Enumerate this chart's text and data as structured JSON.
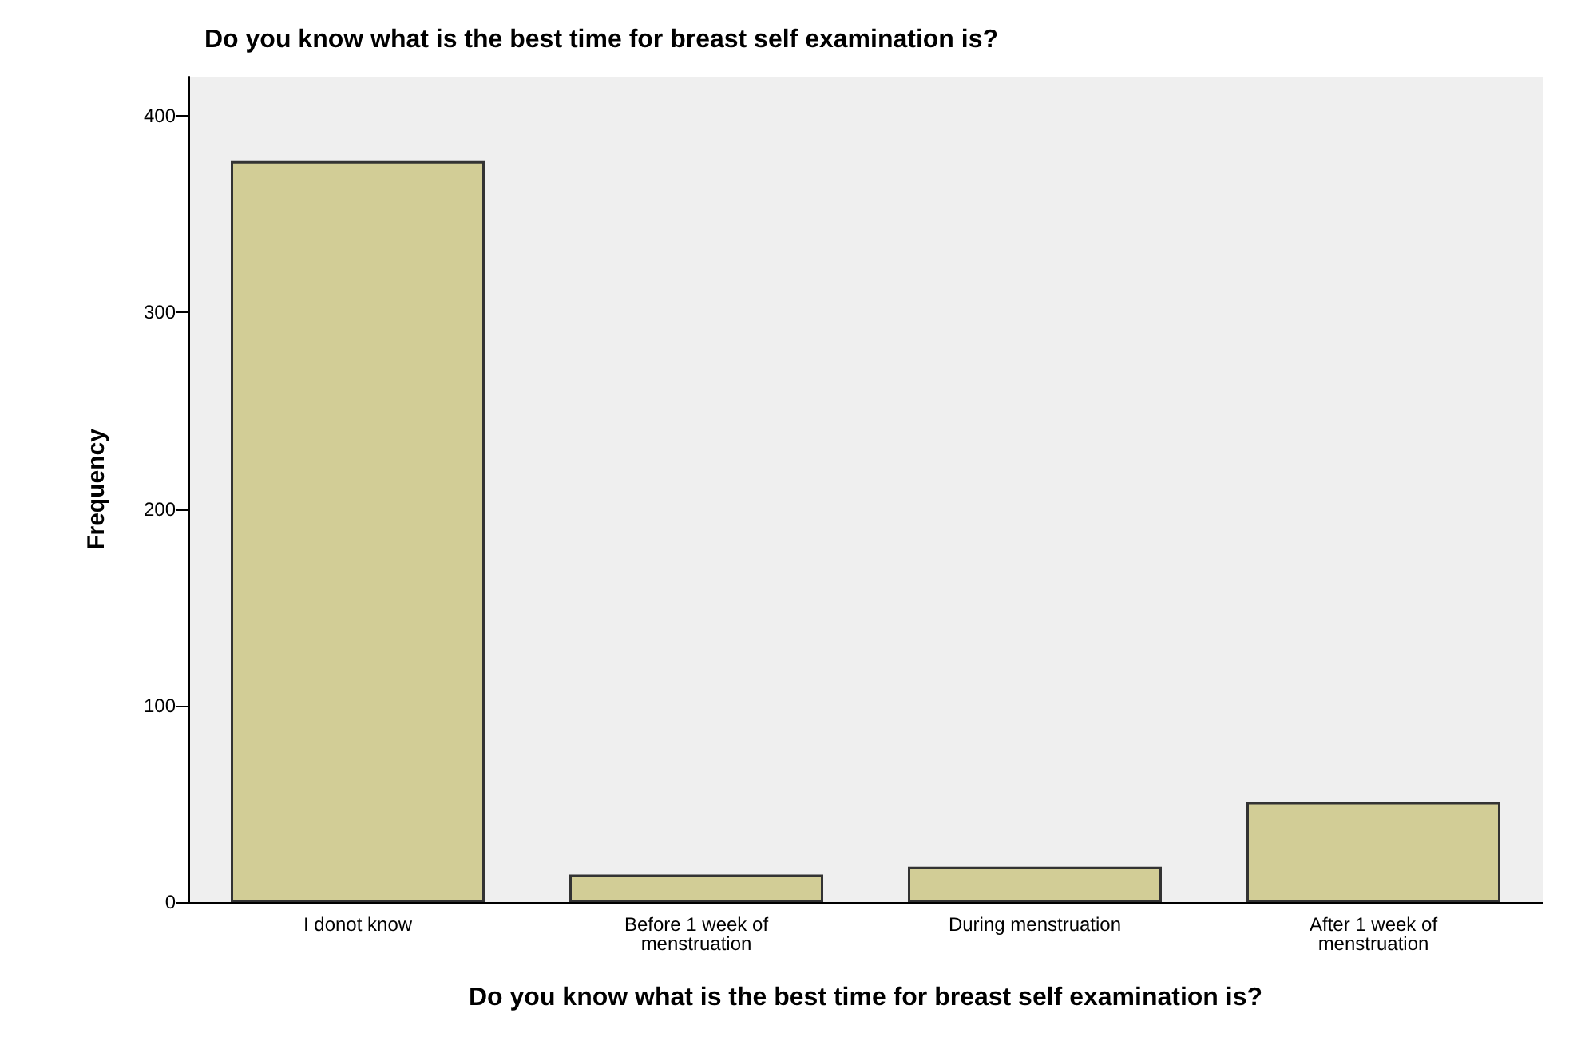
{
  "chart_data": {
    "type": "bar",
    "title": "Do you know what is the best time for breast self examination is?",
    "xlabel": "Do you know what is the best time for breast self examination is?",
    "ylabel": "Frequency",
    "categories": [
      "I donot know",
      "Before 1 week of\nmenstruation",
      "During menstruation",
      "After 1 week of\nmenstruation"
    ],
    "values": [
      377,
      14,
      18,
      51
    ],
    "color": "#d2cd96",
    "ylim": [
      0,
      420
    ],
    "yticks": [
      0,
      100,
      200,
      300,
      400
    ],
    "grid": false
  }
}
